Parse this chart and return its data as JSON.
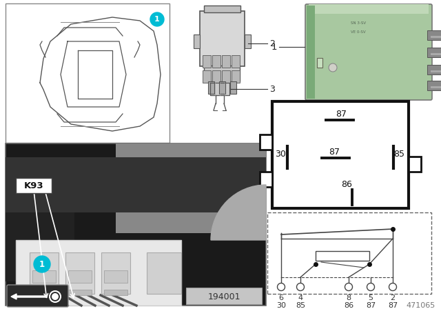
{
  "bg_color": "#ffffff",
  "image_number_bottom_right": "471065",
  "image_number_photo": "194001",
  "car_label": "1",
  "connector_label": "2",
  "terminal_label": "3",
  "relay_label": "1",
  "K93_label": "K93",
  "photo_circle_label": "1",
  "cyan_circle_color": "#00bcd4",
  "green_relay_color": "#a8c8a0",
  "green_relay_dark": "#7aaa78",
  "pin_diag_top": "87",
  "pin_diag_mid_l": "30",
  "pin_diag_mid_c": "87",
  "pin_diag_mid_r": "85",
  "pin_diag_bot": "86",
  "sc_row1": [
    "6",
    "4",
    "8",
    "5",
    "2"
  ],
  "sc_row2": [
    "30",
    "85",
    "86",
    "87",
    "87"
  ]
}
